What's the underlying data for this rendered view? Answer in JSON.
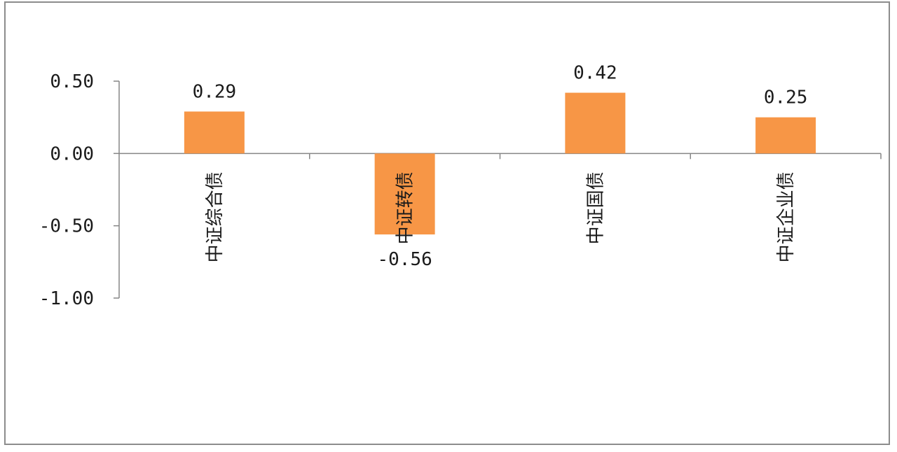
{
  "chart_data": {
    "type": "bar",
    "categories": [
      "中证综合债",
      "中证转债",
      "中证国债",
      "中证企业债"
    ],
    "values": [
      0.29,
      -0.56,
      0.42,
      0.25
    ],
    "data_labels": [
      "0.29",
      "-0.56",
      "0.42",
      "0.25"
    ],
    "yticks": [
      0.5,
      0.0,
      -0.5,
      -1.0
    ],
    "ytick_labels": [
      "0.50",
      "0.00",
      "-0.50",
      "-1.00"
    ],
    "ylim": [
      -1.0,
      0.5
    ],
    "grid": false,
    "legend": "none",
    "bar_color": "#F79646",
    "axis_color": "#868686"
  }
}
